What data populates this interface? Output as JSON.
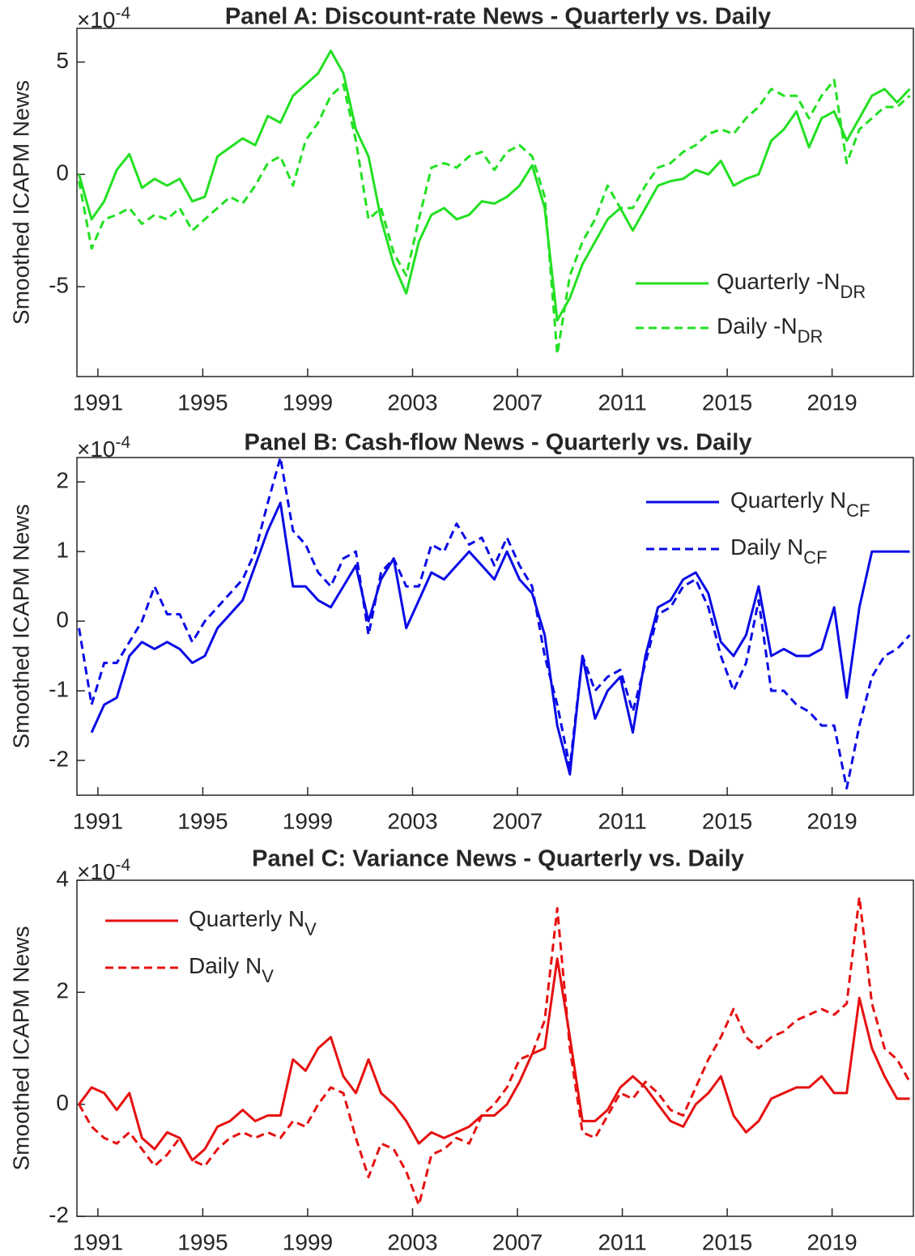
{
  "chart_data": [
    {
      "type": "line",
      "title": "Panel A: Discount-rate News - Quarterly vs. Daily",
      "ylabel": "Smoothed ICAPM News",
      "exponent_base": "×10",
      "exponent": "-4",
      "x": [
        1990.28,
        1990.76,
        1991.24,
        1991.72,
        1992.2,
        1992.68,
        1993.16,
        1993.64,
        1994.12,
        1994.6,
        1995.08,
        1995.56,
        1996.04,
        1996.52,
        1997.0,
        1997.48,
        1997.96,
        1998.44,
        1998.92,
        1999.4,
        1999.88,
        2000.36,
        2000.84,
        2001.32,
        2001.8,
        2002.28,
        2002.76,
        2003.24,
        2003.72,
        2004.2,
        2004.68,
        2005.16,
        2005.64,
        2006.12,
        2006.6,
        2007.08,
        2007.56,
        2008.04,
        2008.52,
        2009.0,
        2009.48,
        2009.96,
        2010.44,
        2010.92,
        2011.4,
        2011.88,
        2012.36,
        2012.84,
        2013.32,
        2013.8,
        2014.28,
        2014.76,
        2015.24,
        2015.72,
        2016.2,
        2016.68,
        2017.16,
        2017.64,
        2018.12,
        2018.6,
        2019.08,
        2019.56,
        2020.04,
        2020.52,
        2021.0,
        2021.48,
        2021.96
      ],
      "series": [
        {
          "name": "Quarterly -N",
          "name_sub": "DR",
          "color": "#22e022",
          "dashed": false,
          "values": [
            0,
            -2.0,
            -1.2,
            0.2,
            0.9,
            -0.6,
            -0.2,
            -0.5,
            -0.2,
            -1.2,
            -1.0,
            0.8,
            1.2,
            1.6,
            1.3,
            2.6,
            2.3,
            3.5,
            4.0,
            4.5,
            5.5,
            4.5,
            2.0,
            0.8,
            -2.0,
            -4.0,
            -5.3,
            -3.0,
            -1.8,
            -1.5,
            -2.0,
            -1.8,
            -1.2,
            -1.3,
            -1.0,
            -0.5,
            0.4,
            -1.5,
            -6.5,
            -5.5,
            -4.0,
            -3.0,
            -2.0,
            -1.5,
            -2.5,
            -1.5,
            -0.5,
            -0.3,
            -0.2,
            0.2,
            0.0,
            0.6,
            -0.5,
            -0.2,
            0.0,
            1.5,
            2.0,
            2.8,
            1.2,
            2.5,
            2.8,
            1.5,
            2.5,
            3.5,
            3.8,
            3.2,
            3.8
          ]
        },
        {
          "name": "Daily -N",
          "name_sub": "DR",
          "color": "#22e022",
          "dashed": true,
          "values": [
            -0.3,
            -3.3,
            -2.0,
            -1.8,
            -1.5,
            -2.2,
            -1.8,
            -2.0,
            -1.5,
            -2.5,
            -2.0,
            -1.5,
            -1.0,
            -1.3,
            -0.5,
            0.5,
            0.8,
            -0.5,
            1.5,
            2.3,
            3.5,
            4.0,
            1.5,
            -2.0,
            -1.5,
            -3.5,
            -4.5,
            -2.0,
            0.3,
            0.5,
            0.3,
            0.8,
            1.0,
            0.2,
            1.0,
            1.3,
            0.8,
            -1.0,
            -8.0,
            -4.5,
            -3.0,
            -2.0,
            -0.5,
            -1.5,
            -1.5,
            -0.5,
            0.3,
            0.5,
            1.0,
            1.3,
            1.8,
            2.0,
            1.8,
            2.5,
            3.0,
            3.8,
            3.5,
            3.5,
            2.5,
            3.5,
            4.2,
            0.5,
            2.0,
            2.5,
            3.0,
            3.0,
            3.5
          ]
        }
      ],
      "xlim": [
        1990.2,
        2022.1
      ],
      "xticks": [
        1991,
        1995,
        1999,
        2003,
        2007,
        2011,
        2015,
        2019
      ],
      "ylim": [
        -9,
        6.5
      ],
      "yticks": [
        -5,
        0,
        5
      ],
      "legend": "lower-right"
    },
    {
      "type": "line",
      "title": "Panel B: Cash-flow News - Quarterly vs. Daily",
      "ylabel": "Smoothed ICAPM News",
      "exponent_base": "×10",
      "exponent": "-4",
      "x": [
        1990.28,
        1990.76,
        1991.24,
        1991.72,
        1992.2,
        1992.68,
        1993.16,
        1993.64,
        1994.12,
        1994.6,
        1995.08,
        1995.56,
        1996.04,
        1996.52,
        1997.0,
        1997.48,
        1997.96,
        1998.44,
        1998.92,
        1999.4,
        1999.88,
        2000.36,
        2000.84,
        2001.32,
        2001.8,
        2002.28,
        2002.76,
        2003.24,
        2003.72,
        2004.2,
        2004.68,
        2005.16,
        2005.64,
        2006.12,
        2006.6,
        2007.08,
        2007.56,
        2008.04,
        2008.52,
        2009.0,
        2009.48,
        2009.96,
        2010.44,
        2010.92,
        2011.4,
        2011.88,
        2012.36,
        2012.84,
        2013.32,
        2013.8,
        2014.28,
        2014.76,
        2015.24,
        2015.72,
        2016.2,
        2016.68,
        2017.16,
        2017.64,
        2018.12,
        2018.6,
        2019.08,
        2019.56,
        2020.04,
        2020.52,
        2021.0,
        2021.48,
        2021.96
      ],
      "series": [
        {
          "name": "Quarterly N",
          "name_sub": "CF",
          "color": "#0a0ae6",
          "dashed": false,
          "values": [
            null,
            -1.6,
            -1.2,
            -1.1,
            -0.5,
            -0.3,
            -0.4,
            -0.3,
            -0.4,
            -0.6,
            -0.5,
            -0.1,
            0.1,
            0.3,
            0.8,
            1.3,
            1.7,
            0.5,
            0.5,
            0.3,
            0.2,
            0.5,
            0.8,
            0.0,
            0.6,
            0.9,
            -0.1,
            0.3,
            0.7,
            0.6,
            0.8,
            1.0,
            0.8,
            0.6,
            1.0,
            0.6,
            0.4,
            -0.2,
            -1.5,
            -2.2,
            -0.5,
            -1.4,
            -1.0,
            -0.8,
            -1.6,
            -0.5,
            0.2,
            0.3,
            0.6,
            0.7,
            0.4,
            -0.3,
            -0.5,
            -0.2,
            0.5,
            -0.5,
            -0.4,
            -0.5,
            -0.5,
            -0.4,
            0.2,
            -1.1,
            0.2,
            1.0,
            1.0,
            1.0,
            1.0
          ]
        },
        {
          "name": "Daily N",
          "name_sub": "CF",
          "color": "#0a0ae6",
          "dashed": true,
          "values": [
            -0.1,
            -1.2,
            -0.6,
            -0.6,
            -0.3,
            0.0,
            0.5,
            0.1,
            0.1,
            -0.3,
            0.0,
            0.2,
            0.4,
            0.6,
            1.0,
            1.7,
            2.35,
            1.3,
            1.1,
            0.7,
            0.5,
            0.9,
            1.0,
            -0.2,
            0.7,
            0.9,
            0.5,
            0.5,
            1.1,
            1.0,
            1.4,
            1.1,
            1.2,
            0.8,
            1.2,
            0.8,
            0.5,
            -0.5,
            -1.2,
            -2.1,
            -0.5,
            -1.0,
            -0.8,
            -0.7,
            -1.3,
            -0.6,
            0.1,
            0.2,
            0.5,
            0.6,
            0.2,
            -0.5,
            -1.0,
            -0.6,
            0.3,
            -1.0,
            -1.0,
            -1.2,
            -1.3,
            -1.5,
            -1.5,
            -2.4,
            -1.5,
            -0.8,
            -0.5,
            -0.4,
            -0.2
          ]
        }
      ],
      "xlim": [
        1990.2,
        2022.1
      ],
      "xticks": [
        1991,
        1995,
        1999,
        2003,
        2007,
        2011,
        2015,
        2019
      ],
      "ylim": [
        -2.5,
        2.35
      ],
      "yticks": [
        -2,
        -1,
        0,
        1,
        2
      ],
      "legend": "upper-right"
    },
    {
      "type": "line",
      "title": "Panel C: Variance News - Quarterly vs. Daily",
      "ylabel": "Smoothed ICAPM News",
      "exponent_base": "×10",
      "exponent": "-4",
      "x": [
        1990.28,
        1990.76,
        1991.24,
        1991.72,
        1992.2,
        1992.68,
        1993.16,
        1993.64,
        1994.12,
        1994.6,
        1995.08,
        1995.56,
        1996.04,
        1996.52,
        1997.0,
        1997.48,
        1997.96,
        1998.44,
        1998.92,
        1999.4,
        1999.88,
        2000.36,
        2000.84,
        2001.32,
        2001.8,
        2002.28,
        2002.76,
        2003.24,
        2003.72,
        2004.2,
        2004.68,
        2005.16,
        2005.64,
        2006.12,
        2006.6,
        2007.08,
        2007.56,
        2008.04,
        2008.52,
        2009.0,
        2009.48,
        2009.96,
        2010.44,
        2010.92,
        2011.4,
        2011.88,
        2012.36,
        2012.84,
        2013.32,
        2013.8,
        2014.28,
        2014.76,
        2015.24,
        2015.72,
        2016.2,
        2016.68,
        2017.16,
        2017.64,
        2018.12,
        2018.6,
        2019.08,
        2019.56,
        2020.04,
        2020.52,
        2021.0,
        2021.48,
        2021.96
      ],
      "series": [
        {
          "name": "Quarterly N",
          "name_sub": "V",
          "color": "#e61010",
          "dashed": false,
          "values": [
            0.0,
            0.3,
            0.2,
            -0.1,
            0.2,
            -0.6,
            -0.8,
            -0.5,
            -0.6,
            -1.0,
            -0.8,
            -0.4,
            -0.3,
            -0.1,
            -0.3,
            -0.2,
            -0.2,
            0.8,
            0.6,
            1.0,
            1.2,
            0.5,
            0.2,
            0.8,
            0.2,
            0.0,
            -0.3,
            -0.7,
            -0.5,
            -0.6,
            -0.5,
            -0.4,
            -0.2,
            -0.2,
            0.0,
            0.4,
            0.9,
            1.0,
            2.6,
            1.2,
            -0.3,
            -0.3,
            -0.1,
            0.3,
            0.5,
            0.3,
            0.0,
            -0.3,
            -0.4,
            0.0,
            0.2,
            0.5,
            -0.2,
            -0.5,
            -0.3,
            0.1,
            0.2,
            0.3,
            0.3,
            0.5,
            0.2,
            0.2,
            1.9,
            1.0,
            0.5,
            0.1,
            0.1
          ]
        },
        {
          "name": "Daily N",
          "name_sub": "V",
          "color": "#e61010",
          "dashed": true,
          "values": [
            0.0,
            -0.4,
            -0.6,
            -0.7,
            -0.5,
            -0.8,
            -1.1,
            -0.9,
            -0.6,
            -1.0,
            -1.1,
            -0.8,
            -0.6,
            -0.5,
            -0.6,
            -0.5,
            -0.6,
            -0.3,
            -0.4,
            0.0,
            0.3,
            0.2,
            -0.6,
            -1.3,
            -0.7,
            -0.8,
            -1.2,
            -1.8,
            -0.9,
            -0.8,
            -0.6,
            -0.7,
            -0.2,
            0.0,
            0.3,
            0.8,
            0.9,
            1.5,
            3.5,
            1.0,
            -0.5,
            -0.6,
            -0.2,
            0.2,
            0.1,
            0.4,
            0.2,
            -0.1,
            -0.2,
            0.3,
            0.8,
            1.2,
            1.7,
            1.2,
            1.0,
            1.2,
            1.3,
            1.5,
            1.6,
            1.7,
            1.6,
            1.8,
            3.7,
            1.8,
            1.0,
            0.8,
            0.4
          ]
        }
      ],
      "xlim": [
        1990.2,
        2022.1
      ],
      "xticks": [
        1991,
        1995,
        1999,
        2003,
        2007,
        2011,
        2015,
        2019
      ],
      "ylim": [
        -2,
        4
      ],
      "yticks": [
        -2,
        0,
        2,
        4
      ],
      "legend": "upper-left"
    }
  ]
}
